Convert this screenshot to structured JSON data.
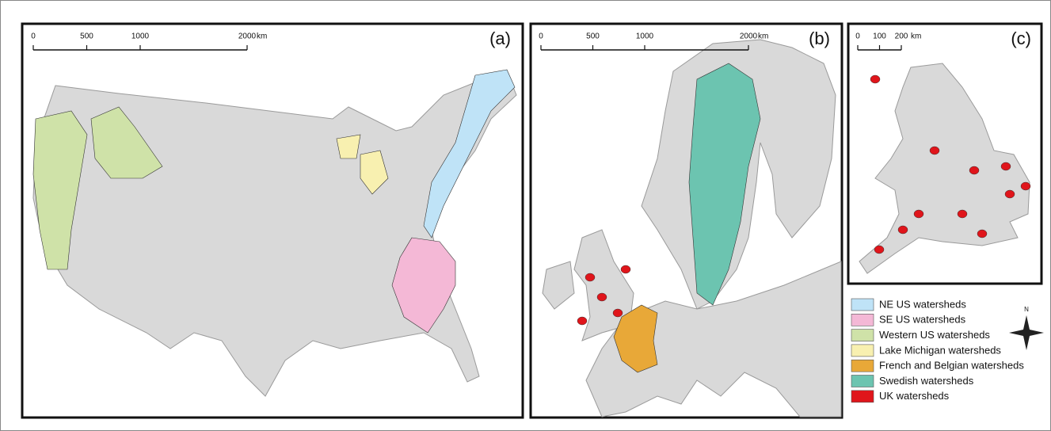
{
  "panels": [
    {
      "label": "(a)",
      "scale_bar": {
        "ticks": [
          0,
          500,
          1000,
          2000
        ],
        "unit": "km"
      }
    },
    {
      "label": "(b)",
      "scale_bar": {
        "ticks": [
          0,
          500,
          1000,
          2000
        ],
        "unit": "km"
      }
    },
    {
      "label": "(c)",
      "scale_bar": {
        "ticks": [
          0,
          100,
          200
        ],
        "unit": "km"
      }
    }
  ],
  "legend": [
    {
      "label": "NE US watersheds",
      "color": "#bfe3f7"
    },
    {
      "label": "SE US watersheds",
      "color": "#f4b8d6"
    },
    {
      "label": "Western US watersheds",
      "color": "#cfe2a8"
    },
    {
      "label": "Lake Michigan watersheds",
      "color": "#f8f0b0"
    },
    {
      "label": "French and Belgian watersheds",
      "color": "#e8a838"
    },
    {
      "label": "Swedish watersheds",
      "color": "#6cc4b0"
    },
    {
      "label": "UK watersheds",
      "color": "#e0151b"
    }
  ],
  "compass": {
    "label": "N"
  }
}
